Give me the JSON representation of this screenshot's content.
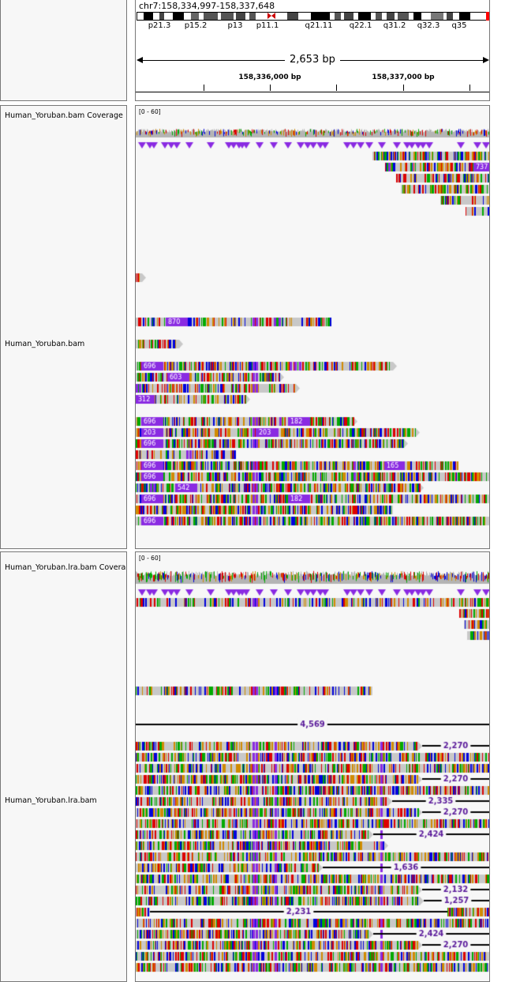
{
  "locus": "chr7:158,334,997-158,337,648",
  "ideogram": {
    "bands": [
      "p21.3",
      "p15.2",
      "p13",
      "p11.1",
      "q21.11",
      "q22.1",
      "q31.2",
      "q32.3",
      "q35"
    ]
  },
  "ruler": {
    "span": "2,653 bp",
    "ticks": [
      "158,336,000 bp",
      "158,337,000 bp"
    ]
  },
  "tracks": {
    "coverage1": {
      "name": "Human_Yoruban.bam Coverage",
      "range": "[0 - 60]"
    },
    "alignment1": {
      "name": "Human_Yoruban.bam",
      "insertion_labels": [
        "737",
        "870",
        "696",
        "603",
        "312",
        "696",
        "182",
        "203",
        "696",
        "696",
        "165",
        "696",
        "542",
        "696",
        "182",
        "696"
      ]
    },
    "coverage2": {
      "name": "Human_Yoruban.lra.bam Coverage",
      "range": "[0 - 60]"
    },
    "alignment2": {
      "name": "Human_Yoruban.lra.bam",
      "deletion_labels": [
        "4,569",
        "2,270",
        "2,270",
        "2,335",
        "2,270",
        "2,424",
        "1,636",
        "2,132",
        "1,257",
        "2,231",
        "2,424",
        "2,270"
      ]
    }
  },
  "colors": {
    "read": "#c8c8c8",
    "insertion": "#8a2be2",
    "mismatch_a": "#00aa00",
    "mismatch_c": "#0000dd",
    "mismatch_g": "#d18b00",
    "mismatch_t": "#dd0000",
    "deletion_label": "#5a1a9a"
  }
}
